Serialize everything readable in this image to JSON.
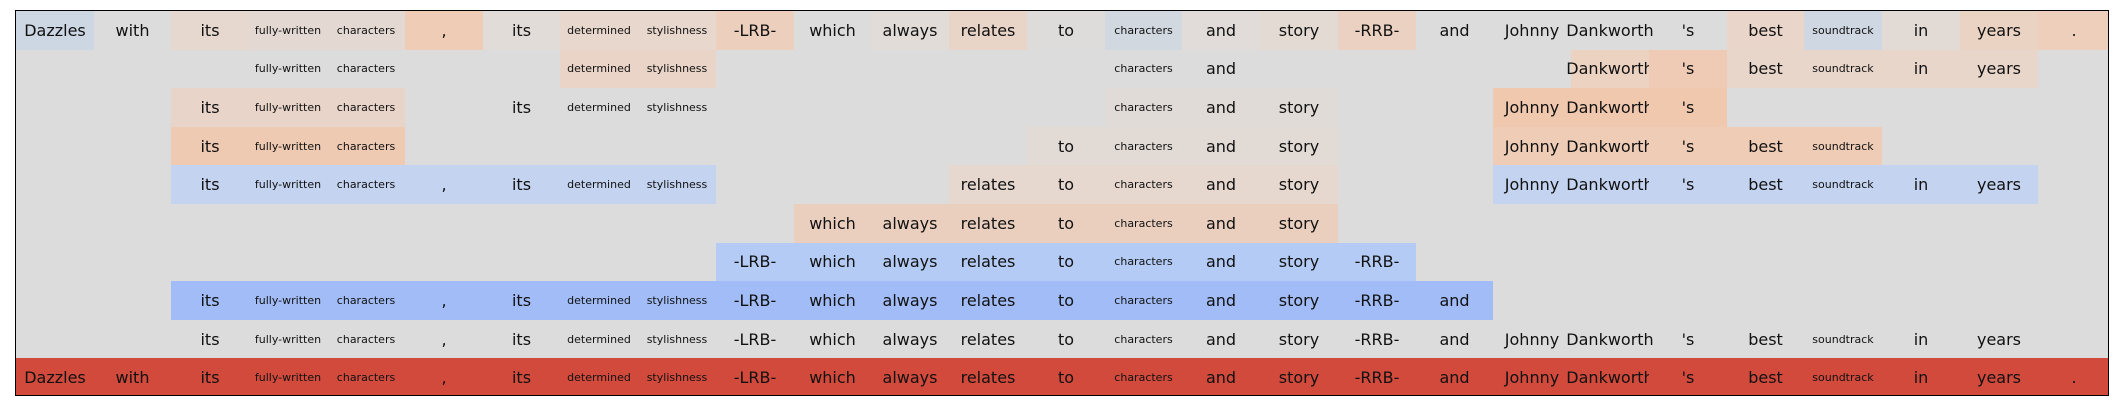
{
  "tokens": [
    "Dazzles",
    "with",
    "its",
    "fully-written",
    "characters",
    ",",
    "its",
    "determined",
    "stylishness",
    "-LRB-",
    "which",
    "always",
    "relates",
    "to",
    "characters",
    "and",
    "story",
    "-RRB-",
    "and",
    "Johnny",
    "Dankworth",
    "'s",
    "best",
    "soundtrack",
    "in",
    "years",
    "."
  ],
  "small_tokens": [
    3,
    4,
    7,
    8,
    14,
    23
  ],
  "rows": [
    {
      "cells": [
        [
          0,
          "#cdd6e3"
        ],
        [
          1,
          null
        ],
        [
          2,
          "#e7d8cf"
        ],
        [
          3,
          "#e4d9d2"
        ],
        [
          4,
          "#e4d9d2"
        ],
        [
          5,
          "#efccb6"
        ],
        [
          6,
          "#e1dcd8"
        ],
        [
          7,
          "#e8d7cc"
        ],
        [
          8,
          "#e8d7cc"
        ],
        [
          9,
          "#eccfbd"
        ],
        [
          10,
          null
        ],
        [
          11,
          "#e2dcd8"
        ],
        [
          12,
          "#e9d4c8"
        ],
        [
          13,
          "#dedcdb"
        ],
        [
          14,
          "#d2d8e0"
        ],
        [
          15,
          "#e1dcd9"
        ],
        [
          16,
          "#e3dad3"
        ],
        [
          17,
          "#ebd1c1"
        ],
        [
          18,
          null
        ],
        [
          19,
          null
        ],
        [
          20,
          null
        ],
        [
          21,
          null
        ],
        [
          22,
          "#e9d5c9"
        ],
        [
          23,
          "#cfd7e2"
        ],
        [
          24,
          "#e2dad5"
        ],
        [
          25,
          "#ebd3c4"
        ],
        [
          26,
          "#edcfbc"
        ]
      ]
    },
    {
      "cells": [
        [
          3,
          null
        ],
        [
          4,
          null
        ],
        [
          7,
          "#e9d4c7"
        ],
        [
          8,
          "#e9d4c7"
        ],
        [
          14,
          null
        ],
        [
          15,
          "#dcdcdc"
        ],
        [
          20,
          "#ecd2c1"
        ],
        [
          21,
          "#efcbb5"
        ],
        [
          22,
          "#e8d6cb"
        ],
        [
          23,
          "#e8d6cb"
        ],
        [
          24,
          "#e8d6cb"
        ],
        [
          25,
          "#e8d6cb"
        ]
      ]
    },
    {
      "cells": [
        [
          2,
          "#e8d4c8"
        ],
        [
          3,
          "#e8d4c8"
        ],
        [
          4,
          "#e8d4c8"
        ],
        [
          6,
          null
        ],
        [
          7,
          null
        ],
        [
          8,
          null
        ],
        [
          14,
          "#e1dbd8"
        ],
        [
          15,
          "#e1dbd8"
        ],
        [
          16,
          "#e1dbd8"
        ],
        [
          19,
          "#f0c8ae"
        ],
        [
          20,
          "#f0c8ae"
        ],
        [
          21,
          "#f0c8ae"
        ]
      ]
    },
    {
      "cells": [
        [
          2,
          "#efcab3"
        ],
        [
          3,
          "#efcab3"
        ],
        [
          4,
          "#efcab3"
        ],
        [
          13,
          "#e2dad5"
        ],
        [
          14,
          "#e2dad5"
        ],
        [
          15,
          "#e2dad5"
        ],
        [
          16,
          "#e2dad5"
        ],
        [
          19,
          "#efccb6"
        ],
        [
          20,
          "#efccb6"
        ],
        [
          21,
          "#efccb6"
        ],
        [
          22,
          "#efccb6"
        ],
        [
          23,
          "#efccb6"
        ]
      ]
    },
    {
      "cells": [
        [
          2,
          "#c3d3f0"
        ],
        [
          3,
          "#c3d3f0"
        ],
        [
          4,
          "#c3d3f0"
        ],
        [
          5,
          "#c3d3f0"
        ],
        [
          6,
          "#c3d3f0"
        ],
        [
          7,
          "#c3d3f0"
        ],
        [
          8,
          "#c3d3f0"
        ],
        [
          12,
          "#e6d8cf"
        ],
        [
          13,
          "#e6d8cf"
        ],
        [
          14,
          "#e6d8cf"
        ],
        [
          15,
          "#e6d8cf"
        ],
        [
          16,
          "#e6d8cf"
        ],
        [
          19,
          "#c3d3f0"
        ],
        [
          20,
          "#c3d3f0"
        ],
        [
          21,
          "#c3d3f0"
        ],
        [
          22,
          "#c3d3f0"
        ],
        [
          23,
          "#c3d3f0"
        ],
        [
          24,
          "#c3d3f0"
        ],
        [
          25,
          "#c3d3f0"
        ]
      ]
    },
    {
      "cells": [
        [
          10,
          "#eacfbf"
        ],
        [
          11,
          "#eacfbf"
        ],
        [
          12,
          "#eacfbf"
        ],
        [
          13,
          "#eacfbf"
        ],
        [
          14,
          "#eacfbf"
        ],
        [
          15,
          "#eacfbf"
        ],
        [
          16,
          "#eacfbf"
        ]
      ]
    },
    {
      "cells": [
        [
          9,
          "#b4cbf5"
        ],
        [
          10,
          "#b4cbf5"
        ],
        [
          11,
          "#b4cbf5"
        ],
        [
          12,
          "#b4cbf5"
        ],
        [
          13,
          "#b4cbf5"
        ],
        [
          14,
          "#b4cbf5"
        ],
        [
          15,
          "#b4cbf5"
        ],
        [
          16,
          "#b4cbf5"
        ],
        [
          17,
          "#b4cbf5"
        ]
      ]
    },
    {
      "cells": [
        [
          2,
          "#a1bcf6"
        ],
        [
          3,
          "#a1bcf6"
        ],
        [
          4,
          "#a1bcf6"
        ],
        [
          5,
          "#a1bcf6"
        ],
        [
          6,
          "#a1bcf6"
        ],
        [
          7,
          "#a1bcf6"
        ],
        [
          8,
          "#a1bcf6"
        ],
        [
          9,
          "#a1bcf6"
        ],
        [
          10,
          "#a1bcf6"
        ],
        [
          11,
          "#a1bcf6"
        ],
        [
          12,
          "#a1bcf6"
        ],
        [
          13,
          "#a1bcf6"
        ],
        [
          14,
          "#a1bcf6"
        ],
        [
          15,
          "#a1bcf6"
        ],
        [
          16,
          "#a1bcf6"
        ],
        [
          17,
          "#a1bcf6"
        ],
        [
          18,
          "#a1bcf6"
        ]
      ]
    },
    {
      "cells": [
        [
          2,
          null
        ],
        [
          3,
          null
        ],
        [
          4,
          null
        ],
        [
          5,
          null
        ],
        [
          6,
          null
        ],
        [
          7,
          null
        ],
        [
          8,
          null
        ],
        [
          9,
          null
        ],
        [
          10,
          null
        ],
        [
          11,
          null
        ],
        [
          12,
          null
        ],
        [
          13,
          null
        ],
        [
          14,
          null
        ],
        [
          15,
          null
        ],
        [
          16,
          null
        ],
        [
          17,
          null
        ],
        [
          18,
          null
        ],
        [
          19,
          null
        ],
        [
          20,
          null
        ],
        [
          21,
          null
        ],
        [
          22,
          null
        ],
        [
          23,
          null
        ],
        [
          24,
          null
        ],
        [
          25,
          null
        ]
      ]
    },
    {
      "cells": [
        [
          0,
          "#d14a3c"
        ],
        [
          1,
          "#d14a3c"
        ],
        [
          2,
          "#d14a3c"
        ],
        [
          3,
          "#d14a3c"
        ],
        [
          4,
          "#d14a3c"
        ],
        [
          5,
          "#d14a3c"
        ],
        [
          6,
          "#d14a3c"
        ],
        [
          7,
          "#d14a3c"
        ],
        [
          8,
          "#d14a3c"
        ],
        [
          9,
          "#d14a3c"
        ],
        [
          10,
          "#d14a3c"
        ],
        [
          11,
          "#d14a3c"
        ],
        [
          12,
          "#d14a3c"
        ],
        [
          13,
          "#d14a3c"
        ],
        [
          14,
          "#d14a3c"
        ],
        [
          15,
          "#d14a3c"
        ],
        [
          16,
          "#d14a3c"
        ],
        [
          17,
          "#d14a3c"
        ],
        [
          18,
          "#d14a3c"
        ],
        [
          19,
          "#d14a3c"
        ],
        [
          20,
          "#d14a3c"
        ],
        [
          21,
          "#d14a3c"
        ],
        [
          22,
          "#d14a3c"
        ],
        [
          23,
          "#d14a3c"
        ],
        [
          24,
          "#d14a3c"
        ],
        [
          25,
          "#d14a3c"
        ],
        [
          26,
          "#d14a3c"
        ]
      ]
    }
  ]
}
